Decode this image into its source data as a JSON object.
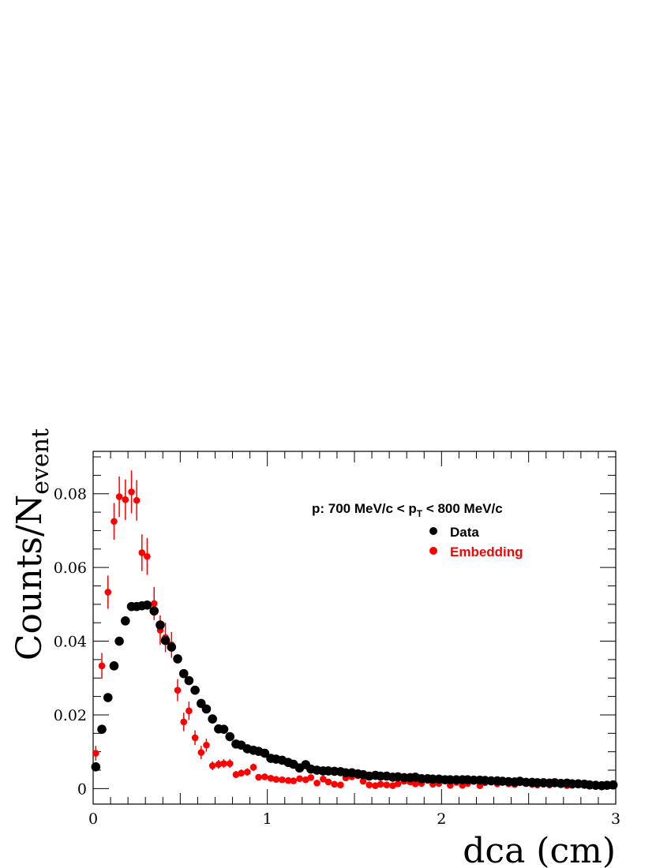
{
  "chart_data": {
    "type": "scatter",
    "annotation": {
      "prefix": "p: 700 MeV/c < p",
      "sub": "T",
      "suffix": " < 800 MeV/c"
    },
    "xlabel": "dca (cm)",
    "ylabel": {
      "main": "Counts/N",
      "sub": "event"
    },
    "xlim": [
      0,
      3
    ],
    "ylim": [
      -0.0042,
      0.0915
    ],
    "x_ticks": [
      "0",
      "1",
      "2",
      "3"
    ],
    "y_ticks": [
      "0",
      "0.02",
      "0.04",
      "0.06",
      "0.08"
    ],
    "x_tick_values": [
      0,
      1,
      2,
      3
    ],
    "y_tick_values": [
      0,
      0.02,
      0.04,
      0.06,
      0.08
    ],
    "grid": false,
    "legend_position": "top-right",
    "series": [
      {
        "name": "Data",
        "color": "#000000",
        "points": [
          [
            0.015,
            0.0059
          ],
          [
            0.05,
            0.0161
          ],
          [
            0.085,
            0.0247
          ],
          [
            0.12,
            0.0333
          ],
          [
            0.15,
            0.04
          ],
          [
            0.185,
            0.0455
          ],
          [
            0.22,
            0.0494
          ],
          [
            0.25,
            0.0494
          ],
          [
            0.28,
            0.0496
          ],
          [
            0.31,
            0.0498
          ],
          [
            0.35,
            0.0482
          ],
          [
            0.385,
            0.0444
          ],
          [
            0.415,
            0.0402
          ],
          [
            0.45,
            0.0384
          ],
          [
            0.485,
            0.0352
          ],
          [
            0.52,
            0.0312
          ],
          [
            0.55,
            0.0293
          ],
          [
            0.585,
            0.0267
          ],
          [
            0.62,
            0.0231
          ],
          [
            0.65,
            0.0216
          ],
          [
            0.685,
            0.0189
          ],
          [
            0.72,
            0.0162
          ],
          [
            0.75,
            0.0161
          ],
          [
            0.785,
            0.0141
          ],
          [
            0.82,
            0.0121
          ],
          [
            0.85,
            0.0118
          ],
          [
            0.885,
            0.0108
          ],
          [
            0.92,
            0.0104
          ],
          [
            0.95,
            0.0101
          ],
          [
            0.985,
            0.0096
          ],
          [
            1.02,
            0.0082
          ],
          [
            1.05,
            0.008
          ],
          [
            1.085,
            0.0077
          ],
          [
            1.12,
            0.0071
          ],
          [
            1.15,
            0.0066
          ],
          [
            1.185,
            0.0056
          ],
          [
            1.22,
            0.0065
          ],
          [
            1.25,
            0.0053
          ],
          [
            1.285,
            0.005
          ],
          [
            1.32,
            0.0048
          ],
          [
            1.35,
            0.0048
          ],
          [
            1.385,
            0.0047
          ],
          [
            1.42,
            0.0046
          ],
          [
            1.45,
            0.0043
          ],
          [
            1.485,
            0.0043
          ],
          [
            1.52,
            0.004
          ],
          [
            1.55,
            0.0038
          ],
          [
            1.585,
            0.0034
          ],
          [
            1.62,
            0.0036
          ],
          [
            1.65,
            0.0034
          ],
          [
            1.685,
            0.0034
          ],
          [
            1.72,
            0.0031
          ],
          [
            1.75,
            0.0032
          ],
          [
            1.785,
            0.003
          ],
          [
            1.82,
            0.003
          ],
          [
            1.85,
            0.0031
          ],
          [
            1.885,
            0.0027
          ],
          [
            1.92,
            0.0027
          ],
          [
            1.95,
            0.0026
          ],
          [
            1.985,
            0.0026
          ],
          [
            2.02,
            0.0024
          ],
          [
            2.05,
            0.0024
          ],
          [
            2.085,
            0.0024
          ],
          [
            2.12,
            0.0024
          ],
          [
            2.15,
            0.0024
          ],
          [
            2.185,
            0.0023
          ],
          [
            2.22,
            0.0023
          ],
          [
            2.25,
            0.0022
          ],
          [
            2.285,
            0.0021
          ],
          [
            2.32,
            0.0021
          ],
          [
            2.35,
            0.002
          ],
          [
            2.385,
            0.0019
          ],
          [
            2.42,
            0.0018
          ],
          [
            2.45,
            0.002
          ],
          [
            2.485,
            0.0017
          ],
          [
            2.52,
            0.0017
          ],
          [
            2.55,
            0.0016
          ],
          [
            2.585,
            0.0016
          ],
          [
            2.62,
            0.0015
          ],
          [
            2.65,
            0.0016
          ],
          [
            2.685,
            0.0014
          ],
          [
            2.72,
            0.0015
          ],
          [
            2.75,
            0.0013
          ],
          [
            2.785,
            0.0013
          ],
          [
            2.82,
            0.0012
          ],
          [
            2.85,
            0.001
          ],
          [
            2.885,
            0.0009
          ],
          [
            2.92,
            0.0008
          ],
          [
            2.95,
            0.0009
          ],
          [
            2.985,
            0.001
          ]
        ]
      },
      {
        "name": "Embedding",
        "color": "#ff0000",
        "points": [
          [
            0.015,
            0.0096,
            0.002
          ],
          [
            0.05,
            0.0333,
            0.0035
          ],
          [
            0.085,
            0.0533,
            0.0045
          ],
          [
            0.12,
            0.0725,
            0.005
          ],
          [
            0.15,
            0.0792,
            0.0055
          ],
          [
            0.185,
            0.0784,
            0.0055
          ],
          [
            0.22,
            0.0805,
            0.0058
          ],
          [
            0.25,
            0.0782,
            0.0055
          ],
          [
            0.28,
            0.064,
            0.005
          ],
          [
            0.31,
            0.063,
            0.005
          ],
          [
            0.35,
            0.0502,
            0.0045
          ],
          [
            0.385,
            0.043,
            0.004
          ],
          [
            0.415,
            0.041,
            0.004
          ],
          [
            0.45,
            0.039,
            0.0035
          ],
          [
            0.485,
            0.0267,
            0.003
          ],
          [
            0.52,
            0.0181,
            0.0025
          ],
          [
            0.55,
            0.0211,
            0.0025
          ],
          [
            0.585,
            0.0138,
            0.002
          ],
          [
            0.62,
            0.0098,
            0.0018
          ],
          [
            0.65,
            0.0118,
            0.0018
          ],
          [
            0.685,
            0.0062,
            0.0012
          ],
          [
            0.72,
            0.0066,
            0.0012
          ],
          [
            0.75,
            0.0068,
            0.0012
          ],
          [
            0.785,
            0.0068,
            0.0012
          ],
          [
            0.82,
            0.0038,
            0.001
          ],
          [
            0.85,
            0.0042,
            0.001
          ],
          [
            0.885,
            0.0045,
            0.001
          ],
          [
            0.92,
            0.0058,
            0.001
          ],
          [
            0.95,
            0.0031,
            0.0006
          ],
          [
            0.985,
            0.0032,
            0.0006
          ],
          [
            1.02,
            0.0028,
            0.0005
          ],
          [
            1.05,
            0.0025,
            0.0005
          ],
          [
            1.085,
            0.0024,
            0.0005
          ],
          [
            1.12,
            0.0022,
            0.0005
          ],
          [
            1.15,
            0.0021,
            0.0005
          ],
          [
            1.185,
            0.0027,
            0.0005
          ],
          [
            1.22,
            0.0024,
            0.0005
          ],
          [
            1.25,
            0.003,
            0.0005
          ],
          [
            1.285,
            0.0015,
            0.0005
          ],
          [
            1.32,
            0.0026,
            0.0005
          ],
          [
            1.35,
            0.0018,
            0.0005
          ],
          [
            1.385,
            0.0012,
            0.0004
          ],
          [
            1.42,
            0.001,
            0.0004
          ],
          [
            1.45,
            0.0029,
            0.0005
          ],
          [
            1.485,
            0.0032,
            0.0005
          ],
          [
            1.52,
            0.0035,
            0.0005
          ],
          [
            1.55,
            0.002,
            0.0004
          ],
          [
            1.585,
            0.001,
            0.0004
          ],
          [
            1.62,
            0.0008,
            0.0004
          ],
          [
            1.65,
            0.0012,
            0.0004
          ],
          [
            1.685,
            0.001,
            0.0004
          ],
          [
            1.72,
            0.0008,
            0.0004
          ],
          [
            1.75,
            0.0013,
            0.0004
          ],
          [
            1.785,
            0.002,
            0.0004
          ],
          [
            1.82,
            0.0018,
            0.0004
          ],
          [
            1.85,
            0.0013,
            0.0004
          ],
          [
            1.885,
            0.0014,
            0.0004
          ],
          [
            1.92,
            0.0022,
            0.0004
          ],
          [
            1.95,
            0.0012,
            0.0004
          ],
          [
            1.985,
            0.0014,
            0.0004
          ],
          [
            2.02,
            0.0021,
            0.0004
          ],
          [
            2.05,
            0.0009,
            0.0003
          ],
          [
            2.085,
            0.0017,
            0.0004
          ],
          [
            2.12,
            0.0009,
            0.0003
          ],
          [
            2.15,
            0.0014,
            0.0004
          ],
          [
            2.185,
            0.002,
            0.0004
          ],
          [
            2.22,
            0.0008,
            0.0003
          ],
          [
            2.25,
            0.0016,
            0.0004
          ],
          [
            2.285,
            0.002,
            0.0004
          ],
          [
            2.32,
            0.0013,
            0.0004
          ],
          [
            2.35,
            0.0018,
            0.0004
          ],
          [
            2.385,
            0.0013,
            0.0004
          ],
          [
            2.42,
            0.0011,
            0.0003
          ],
          [
            2.45,
            0.0016,
            0.0004
          ],
          [
            2.485,
            0.0014,
            0.0004
          ],
          [
            2.52,
            0.0011,
            0.0003
          ],
          [
            2.55,
            0.001,
            0.0003
          ],
          [
            2.585,
            0.0012,
            0.0003
          ],
          [
            2.62,
            0.001,
            0.0003
          ],
          [
            2.65,
            0.0015,
            0.0004
          ],
          [
            2.685,
            0.0012,
            0.0003
          ],
          [
            2.72,
            0.0008,
            0.0003
          ],
          [
            2.75,
            0.0009,
            0.0003
          ]
        ]
      }
    ]
  }
}
